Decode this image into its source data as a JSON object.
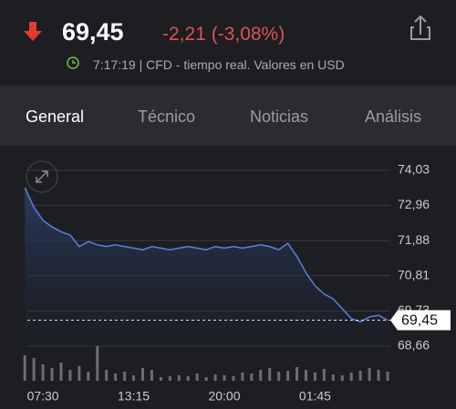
{
  "header": {
    "price": "69,45",
    "change": "-2,21 (-3,08%)",
    "time_note": "7:17:19 | CFD - tiempo real. Valores en USD"
  },
  "tabs": [
    "General",
    "Técnico",
    "Noticias",
    "Análisis"
  ],
  "chart_data": {
    "type": "line",
    "categories": [
      null,
      null,
      "07:30",
      null,
      null,
      null,
      null,
      null,
      null,
      null,
      null,
      null,
      "13:15",
      null,
      null,
      null,
      null,
      null,
      null,
      null,
      null,
      null,
      "20:00",
      null,
      null,
      null,
      null,
      null,
      null,
      null,
      null,
      null,
      "01:45",
      null,
      null,
      null,
      null,
      null,
      null,
      null,
      null
    ],
    "series": [
      {
        "name": "price",
        "color": "#5b7fe0",
        "values": [
          73.5,
          72.9,
          72.5,
          72.3,
          72.15,
          72.05,
          71.7,
          71.85,
          71.75,
          71.7,
          71.75,
          71.7,
          71.65,
          71.6,
          71.7,
          71.65,
          71.6,
          71.65,
          71.7,
          71.65,
          71.6,
          71.7,
          71.65,
          71.7,
          71.65,
          71.7,
          71.75,
          71.7,
          71.6,
          71.8,
          71.4,
          70.9,
          70.5,
          70.25,
          70.1,
          69.8,
          69.5,
          69.4,
          69.55,
          69.6,
          69.45
        ]
      },
      {
        "name": "volume",
        "color": "#6b6d72",
        "values": [
          28,
          25,
          18,
          14,
          20,
          12,
          16,
          10,
          38,
          12,
          8,
          10,
          6,
          14,
          12,
          4,
          5,
          6,
          5,
          8,
          4,
          7,
          6,
          5,
          9,
          8,
          12,
          14,
          10,
          11,
          15,
          12,
          9,
          13,
          7,
          6,
          9,
          11,
          14,
          12,
          10
        ]
      }
    ],
    "volume_lim": [
      0,
      40
    ],
    "ylim": [
      68.24,
      74.36
    ],
    "yticks": [
      {
        "value": 68.66,
        "label": "68,66"
      },
      {
        "value": 69.73,
        "label": "69,73"
      },
      {
        "value": 70.81,
        "label": "70,81"
      },
      {
        "value": 71.88,
        "label": "71,88"
      },
      {
        "value": 72.96,
        "label": "72,96"
      },
      {
        "value": 74.03,
        "label": "74,03"
      }
    ],
    "last": {
      "value": 69.45,
      "label": "69,45"
    },
    "grid": true
  }
}
